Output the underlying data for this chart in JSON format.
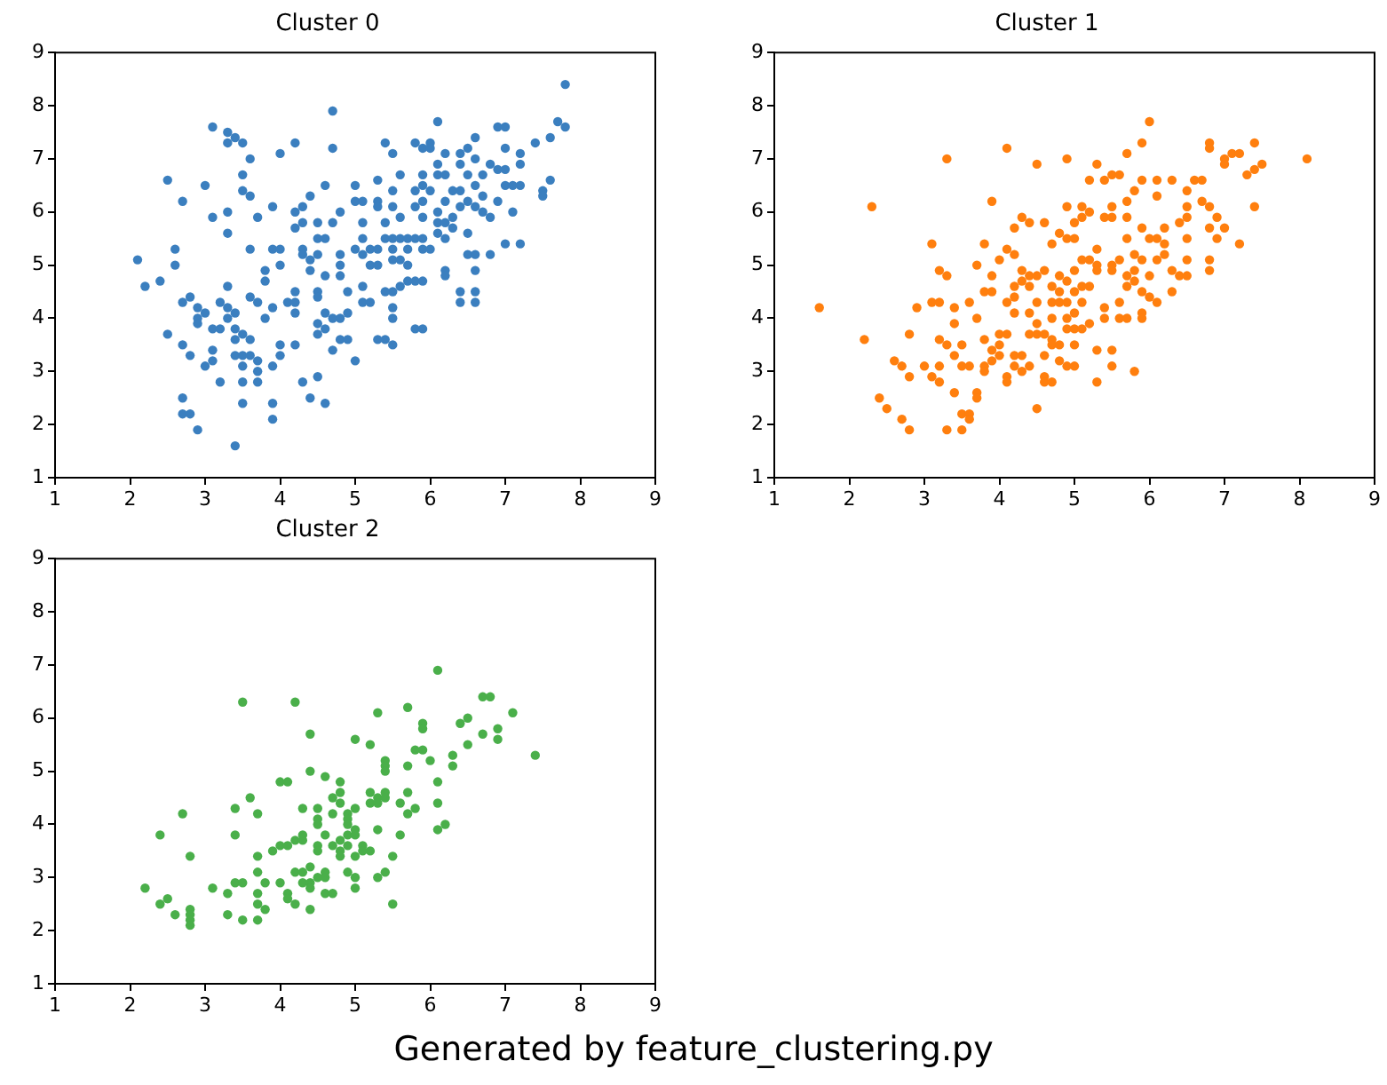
{
  "chart_data": [
    {
      "type": "scatter",
      "title": "Cluster 0",
      "color": "#3b7fbf",
      "marker": "circle",
      "grid": false,
      "xlim": [
        1,
        9
      ],
      "ylim": [
        1,
        9
      ],
      "xticks": [
        1,
        2,
        3,
        4,
        5,
        6,
        7,
        8,
        9
      ],
      "yticks": [
        1,
        2,
        3,
        4,
        5,
        6,
        7,
        8,
        9
      ],
      "x": [
        2.1,
        2.2,
        2.4,
        2.5,
        2.6,
        2.6,
        2.7,
        2.7,
        2.5,
        2.7,
        2.8,
        2.8,
        2.9,
        2.9,
        2.9,
        3.0,
        3.0,
        3.1,
        3.1,
        3.1,
        3.1,
        3.2,
        3.1,
        3.0,
        2.7,
        2.7,
        2.8,
        2.9,
        3.2,
        3.3,
        3.3,
        3.3,
        3.3,
        3.3,
        3.4,
        3.5,
        3.6,
        3.5,
        3.5,
        3.6,
        3.3,
        3.4,
        3.3,
        3.4,
        3.4,
        3.5,
        3.6,
        3.4,
        3.5,
        3.6,
        3.7,
        3.5,
        3.7,
        3.7,
        3.5,
        3.2,
        3.5,
        3.4,
        3.6,
        3.7,
        3.6,
        3.7,
        3.8,
        3.8,
        3.8,
        3.9,
        3.9,
        3.9,
        3.9,
        3.9,
        3.9,
        4.0,
        4.0,
        4.0,
        4.2,
        4.0,
        4.0,
        4.1,
        4.2,
        4.2,
        4.2,
        4.2,
        4.2,
        4.2,
        4.3,
        4.3,
        4.3,
        4.3,
        4.4,
        4.4,
        4.4,
        4.3,
        4.4,
        4.5,
        4.6,
        4.5,
        4.5,
        4.6,
        4.5,
        4.5,
        4.5,
        4.6,
        4.5,
        4.6,
        4.5,
        4.6,
        4.6,
        4.7,
        4.7,
        4.7,
        4.8,
        4.8,
        4.8,
        4.8,
        4.7,
        4.8,
        4.9,
        4.7,
        4.8,
        4.9,
        4.9,
        5.0,
        5.0,
        5.0,
        5.1,
        5.1,
        5.1,
        5.0,
        5.1,
        5.2,
        5.2,
        5.1,
        5.1,
        5.2,
        5.3,
        5.4,
        5.5,
        5.3,
        5.3,
        5.3,
        5.3,
        5.3,
        5.4,
        5.5,
        5.5,
        5.5,
        5.4,
        5.4,
        5.5,
        5.5,
        5.5,
        5.5,
        5.4,
        5.5,
        5.5,
        5.6,
        5.6,
        5.6,
        5.6,
        5.6,
        5.7,
        5.7,
        5.7,
        5.7,
        5.8,
        5.9,
        5.8,
        5.8,
        5.8,
        5.8,
        5.9,
        5.8,
        5.9,
        5.9,
        5.9,
        5.9,
        5.9,
        5.9,
        6.0,
        5.9,
        6.0,
        6.0,
        6.0,
        6.1,
        6.1,
        6.1,
        6.1,
        6.1,
        6.1,
        6.2,
        6.2,
        6.2,
        6.2,
        6.2,
        6.2,
        6.2,
        6.3,
        6.3,
        6.3,
        6.4,
        6.4,
        6.4,
        6.4,
        6.4,
        6.4,
        6.5,
        6.5,
        6.5,
        6.5,
        6.5,
        6.6,
        6.6,
        6.6,
        6.6,
        6.6,
        6.6,
        6.6,
        6.6,
        6.7,
        6.7,
        6.7,
        6.8,
        6.8,
        6.8,
        6.9,
        7.0,
        6.9,
        7.0,
        6.9,
        7.0,
        7.0,
        7.0,
        7.1,
        7.1,
        7.2,
        7.2,
        7.2,
        7.2,
        7.4,
        7.5,
        7.5,
        7.6,
        7.6,
        7.7,
        7.8,
        7.8
      ],
      "values": [
        5.1,
        4.6,
        4.7,
        6.6,
        5.3,
        5.0,
        6.2,
        4.3,
        3.7,
        3.5,
        4.4,
        3.3,
        4.2,
        4.0,
        3.9,
        4.1,
        6.5,
        7.6,
        5.9,
        3.8,
        3.4,
        3.8,
        3.2,
        3.1,
        2.5,
        2.2,
        2.2,
        1.9,
        4.3,
        4.6,
        5.6,
        6.0,
        7.5,
        7.3,
        7.4,
        7.3,
        7.0,
        6.7,
        6.4,
        6.3,
        4.2,
        4.1,
        4.0,
        3.8,
        3.6,
        3.7,
        3.6,
        3.3,
        3.3,
        3.3,
        3.2,
        3.1,
        3.0,
        2.8,
        2.8,
        2.8,
        2.4,
        1.6,
        5.3,
        5.9,
        4.4,
        4.3,
        4.9,
        4.7,
        4.0,
        4.2,
        3.1,
        2.4,
        2.1,
        6.1,
        5.3,
        5.3,
        5.0,
        7.1,
        7.3,
        3.5,
        3.3,
        4.3,
        4.5,
        4.3,
        4.1,
        3.5,
        6.0,
        5.7,
        6.1,
        5.8,
        5.3,
        5.2,
        5.1,
        4.9,
        6.3,
        2.8,
        2.5,
        2.9,
        2.4,
        5.8,
        5.5,
        5.5,
        5.2,
        4.5,
        4.4,
        4.8,
        3.9,
        4.1,
        3.7,
        3.8,
        6.5,
        7.9,
        7.2,
        5.8,
        6.0,
        5.2,
        5.0,
        4.8,
        4.0,
        4.0,
        4.1,
        3.4,
        3.6,
        3.6,
        4.5,
        3.2,
        6.5,
        6.2,
        6.2,
        5.8,
        5.5,
        5.3,
        5.2,
        5.3,
        5.0,
        4.6,
        4.3,
        4.3,
        3.6,
        3.6,
        3.5,
        5.0,
        5.3,
        6.6,
        6.2,
        6.1,
        7.3,
        7.1,
        6.4,
        6.1,
        5.8,
        5.5,
        5.5,
        5.3,
        5.1,
        4.5,
        4.5,
        4.2,
        4.0,
        6.7,
        5.9,
        5.5,
        5.1,
        4.6,
        4.7,
        5.0,
        5.3,
        5.5,
        5.5,
        5.5,
        6.1,
        6.4,
        7.3,
        4.7,
        4.7,
        3.8,
        3.8,
        6.7,
        6.5,
        6.2,
        5.9,
        5.3,
        5.3,
        7.2,
        7.3,
        7.2,
        6.4,
        7.7,
        6.9,
        6.7,
        6.0,
        5.8,
        5.6,
        7.1,
        6.7,
        6.2,
        5.8,
        5.5,
        4.9,
        4.8,
        6.4,
        5.9,
        5.7,
        7.1,
        6.9,
        6.4,
        6.1,
        4.5,
        4.3,
        7.2,
        6.7,
        6.2,
        5.6,
        5.2,
        7.4,
        7.0,
        6.5,
        6.1,
        5.2,
        4.9,
        4.5,
        4.3,
        6.7,
        6.3,
        6.0,
        6.9,
        5.9,
        5.2,
        7.6,
        7.6,
        6.8,
        6.8,
        6.2,
        7.2,
        6.5,
        5.4,
        6.5,
        6.0,
        7.1,
        6.9,
        6.5,
        5.4,
        7.3,
        6.4,
        6.3,
        7.4,
        6.6,
        7.7,
        8.4,
        7.6
      ],
      "annotations": [
        "Generated by feature_clustering.py"
      ]
    },
    {
      "type": "scatter",
      "title": "Cluster 1",
      "color": "#ff7f0e",
      "marker": "circle",
      "grid": false,
      "xlim": [
        1,
        9
      ],
      "ylim": [
        1,
        9
      ],
      "xticks": [
        1,
        2,
        3,
        4,
        5,
        6,
        7,
        8,
        9
      ],
      "yticks": [
        1,
        2,
        3,
        4,
        5,
        6,
        7,
        8,
        9
      ],
      "x": [
        1.6,
        2.2,
        2.3,
        2.4,
        2.5,
        2.6,
        2.7,
        2.7,
        2.8,
        2.8,
        2.8,
        2.9,
        3.0,
        3.1,
        3.1,
        3.1,
        3.2,
        3.3,
        3.2,
        3.2,
        3.2,
        3.2,
        3.3,
        3.3,
        3.3,
        3.4,
        3.4,
        3.4,
        3.4,
        3.5,
        3.5,
        3.6,
        3.5,
        3.6,
        3.6,
        3.5,
        3.6,
        3.7,
        3.7,
        3.7,
        3.7,
        3.8,
        3.8,
        3.9,
        3.8,
        3.8,
        3.8,
        3.9,
        3.9,
        3.9,
        3.9,
        4.0,
        4.1,
        4.0,
        4.0,
        4.0,
        4.1,
        4.1,
        4.1,
        4.1,
        4.1,
        4.2,
        4.2,
        4.2,
        4.2,
        4.2,
        4.2,
        4.3,
        4.2,
        4.3,
        4.3,
        4.3,
        4.3,
        4.4,
        4.4,
        4.4,
        4.4,
        4.4,
        4.4,
        4.5,
        4.5,
        4.5,
        4.5,
        4.5,
        4.5,
        4.6,
        4.6,
        4.6,
        4.6,
        4.6,
        4.6,
        4.7,
        4.7,
        4.7,
        4.7,
        4.7,
        4.7,
        4.7,
        4.8,
        4.8,
        4.8,
        4.8,
        4.8,
        4.8,
        4.9,
        4.9,
        4.9,
        4.9,
        4.9,
        4.9,
        4.9,
        4.9,
        5.0,
        5.0,
        5.0,
        5.0,
        5.0,
        5.0,
        5.0,
        5.0,
        5.1,
        5.1,
        5.1,
        5.1,
        5.1,
        5.1,
        5.2,
        5.2,
        5.2,
        5.2,
        5.2,
        5.3,
        5.3,
        5.3,
        5.3,
        5.3,
        5.3,
        5.4,
        5.4,
        5.4,
        5.4,
        5.5,
        5.5,
        5.5,
        5.5,
        5.5,
        5.5,
        5.5,
        5.6,
        5.6,
        5.6,
        5.6,
        5.7,
        5.7,
        5.7,
        5.7,
        5.7,
        5.7,
        5.7,
        5.8,
        5.8,
        5.8,
        5.8,
        5.8,
        5.9,
        5.9,
        5.9,
        5.9,
        5.9,
        5.9,
        5.9,
        6.0,
        6.0,
        6.0,
        6.0,
        6.1,
        6.1,
        6.1,
        6.1,
        6.1,
        6.2,
        6.2,
        6.2,
        6.3,
        6.3,
        6.3,
        6.4,
        6.4,
        6.5,
        6.5,
        6.5,
        6.5,
        6.5,
        6.5,
        6.6,
        6.7,
        6.7,
        6.8,
        6.8,
        6.8,
        6.8,
        6.8,
        6.8,
        6.9,
        6.9,
        7.0,
        7.0,
        7.0,
        7.1,
        7.2,
        7.2,
        7.3,
        7.4,
        7.4,
        7.4,
        7.5,
        8.1
      ],
      "values": [
        4.2,
        3.6,
        6.1,
        2.5,
        2.3,
        3.2,
        3.1,
        2.1,
        1.9,
        3.7,
        2.9,
        4.2,
        3.1,
        2.9,
        4.3,
        5.4,
        4.9,
        4.8,
        4.3,
        3.6,
        3.1,
        2.8,
        3.5,
        7.0,
        1.9,
        2.6,
        4.2,
        3.9,
        3.3,
        3.5,
        3.1,
        3.1,
        2.2,
        2.2,
        2.1,
        1.9,
        4.3,
        4.0,
        2.6,
        2.5,
        5.0,
        5.4,
        4.5,
        4.5,
        3.6,
        3.1,
        3.0,
        6.2,
        4.8,
        3.4,
        3.2,
        3.7,
        3.7,
        3.5,
        3.3,
        5.1,
        7.2,
        5.3,
        4.3,
        2.9,
        2.8,
        5.7,
        5.2,
        4.6,
        4.4,
        4.1,
        3.3,
        3.3,
        3.1,
        5.9,
        4.9,
        4.7,
        3.0,
        5.8,
        4.8,
        4.6,
        4.1,
        3.7,
        3.1,
        6.9,
        4.8,
        4.3,
        3.9,
        3.7,
        2.3,
        5.8,
        4.9,
        3.7,
        3.3,
        2.9,
        2.8,
        5.4,
        4.6,
        4.3,
        4.0,
        3.6,
        3.5,
        2.8,
        5.6,
        4.8,
        4.5,
        4.3,
        3.5,
        3.2,
        7.0,
        6.1,
        5.5,
        4.7,
        4.3,
        4.0,
        3.8,
        3.1,
        5.8,
        5.5,
        4.9,
        4.5,
        4.1,
        3.8,
        3.5,
        3.1,
        6.1,
        5.9,
        5.1,
        4.6,
        4.3,
        3.8,
        6.6,
        6.0,
        5.1,
        4.6,
        3.9,
        6.9,
        5.3,
        5.0,
        4.9,
        3.4,
        2.8,
        6.6,
        5.9,
        4.2,
        4.0,
        6.7,
        6.1,
        5.9,
        5.0,
        4.9,
        3.4,
        3.1,
        6.7,
        5.1,
        4.3,
        4.0,
        7.1,
        6.2,
        5.9,
        5.5,
        4.8,
        4.6,
        4.0,
        6.4,
        5.2,
        4.9,
        4.7,
        3.0,
        7.3,
        6.6,
        5.7,
        5.1,
        4.5,
        4.1,
        4.0,
        7.7,
        5.5,
        4.8,
        4.4,
        6.6,
        6.3,
        5.5,
        5.1,
        4.3,
        5.7,
        5.4,
        5.2,
        4.9,
        4.5,
        6.6,
        5.8,
        4.8,
        6.4,
        6.1,
        5.9,
        5.5,
        5.1,
        4.8,
        6.6,
        6.6,
        6.2,
        7.3,
        7.2,
        6.1,
        5.7,
        5.1,
        4.9,
        5.9,
        5.5,
        7.0,
        6.9,
        5.7,
        7.1,
        7.1,
        5.4,
        6.7,
        7.3,
        6.8,
        6.1,
        6.9,
        7.0
      ]
    },
    {
      "type": "scatter",
      "title": "Cluster 2",
      "color": "#4aaf4a",
      "marker": "circle",
      "grid": false,
      "xlim": [
        1,
        9
      ],
      "ylim": [
        1,
        9
      ],
      "xticks": [
        1,
        2,
        3,
        4,
        5,
        6,
        7,
        8,
        9
      ],
      "yticks": [
        1,
        2,
        3,
        4,
        5,
        6,
        7,
        8,
        9
      ],
      "x": [
        2.2,
        2.4,
        2.4,
        2.5,
        2.6,
        2.7,
        2.8,
        2.8,
        2.8,
        2.8,
        2.8,
        3.1,
        3.3,
        3.3,
        3.4,
        3.4,
        3.4,
        3.5,
        3.5,
        3.5,
        3.6,
        3.7,
        3.7,
        3.7,
        3.7,
        3.7,
        3.7,
        3.8,
        3.8,
        3.9,
        4.0,
        4.1,
        4.0,
        4.1,
        4.0,
        4.1,
        4.1,
        4.2,
        4.2,
        4.2,
        4.2,
        4.3,
        4.3,
        4.3,
        4.3,
        4.3,
        4.4,
        4.4,
        4.4,
        4.4,
        4.4,
        4.4,
        4.5,
        4.5,
        4.5,
        4.5,
        4.5,
        4.5,
        4.6,
        4.6,
        4.6,
        4.6,
        4.6,
        4.7,
        4.7,
        4.7,
        4.7,
        4.8,
        4.8,
        4.8,
        4.8,
        4.8,
        4.8,
        4.9,
        4.9,
        4.9,
        4.9,
        4.9,
        4.9,
        5.0,
        5.0,
        5.0,
        5.0,
        5.0,
        5.0,
        5.0,
        5.1,
        5.1,
        5.2,
        5.2,
        5.2,
        5.2,
        5.3,
        5.3,
        5.3,
        5.3,
        5.3,
        5.4,
        5.4,
        5.4,
        5.4,
        5.4,
        5.4,
        5.5,
        5.5,
        5.6,
        5.6,
        5.7,
        5.7,
        5.7,
        5.7,
        5.8,
        5.8,
        5.9,
        5.9,
        5.9,
        6.0,
        6.1,
        6.1,
        6.1,
        6.1,
        6.2,
        6.3,
        6.3,
        6.4,
        6.5,
        6.5,
        6.7,
        6.8,
        6.7,
        6.9,
        6.9,
        7.1,
        7.4
      ],
      "values": [
        2.8,
        3.8,
        2.5,
        2.6,
        2.3,
        4.2,
        3.4,
        2.4,
        2.3,
        2.2,
        2.1,
        2.8,
        2.7,
        2.3,
        4.3,
        3.8,
        2.9,
        6.3,
        2.9,
        2.2,
        4.5,
        4.2,
        3.4,
        3.1,
        2.7,
        2.5,
        2.2,
        2.9,
        2.4,
        3.5,
        4.8,
        4.8,
        3.6,
        3.6,
        2.9,
        2.7,
        2.6,
        6.3,
        3.7,
        3.1,
        2.5,
        4.3,
        3.8,
        3.7,
        3.1,
        2.9,
        5.7,
        5.0,
        3.2,
        2.9,
        2.8,
        2.4,
        4.3,
        4.1,
        4.0,
        3.6,
        3.5,
        3.0,
        4.9,
        3.8,
        3.1,
        3.0,
        2.7,
        4.5,
        4.2,
        3.6,
        2.7,
        4.8,
        4.6,
        4.4,
        3.7,
        3.5,
        3.4,
        4.2,
        4.1,
        4.0,
        3.8,
        3.6,
        3.1,
        5.6,
        4.3,
        3.9,
        3.8,
        3.4,
        3.0,
        2.8,
        3.6,
        3.5,
        5.5,
        4.6,
        4.4,
        3.5,
        6.1,
        4.5,
        4.4,
        3.9,
        3.0,
        5.2,
        5.1,
        5.0,
        4.6,
        4.5,
        3.1,
        3.4,
        2.5,
        4.4,
        3.8,
        6.2,
        5.1,
        4.6,
        4.2,
        5.4,
        4.3,
        5.9,
        5.8,
        5.4,
        5.2,
        6.9,
        4.8,
        4.4,
        3.9,
        4.0,
        5.3,
        5.1,
        5.9,
        6.0,
        5.5,
        6.4,
        6.4,
        5.7,
        5.8,
        5.6,
        6.1,
        5.3
      ]
    }
  ]
}
